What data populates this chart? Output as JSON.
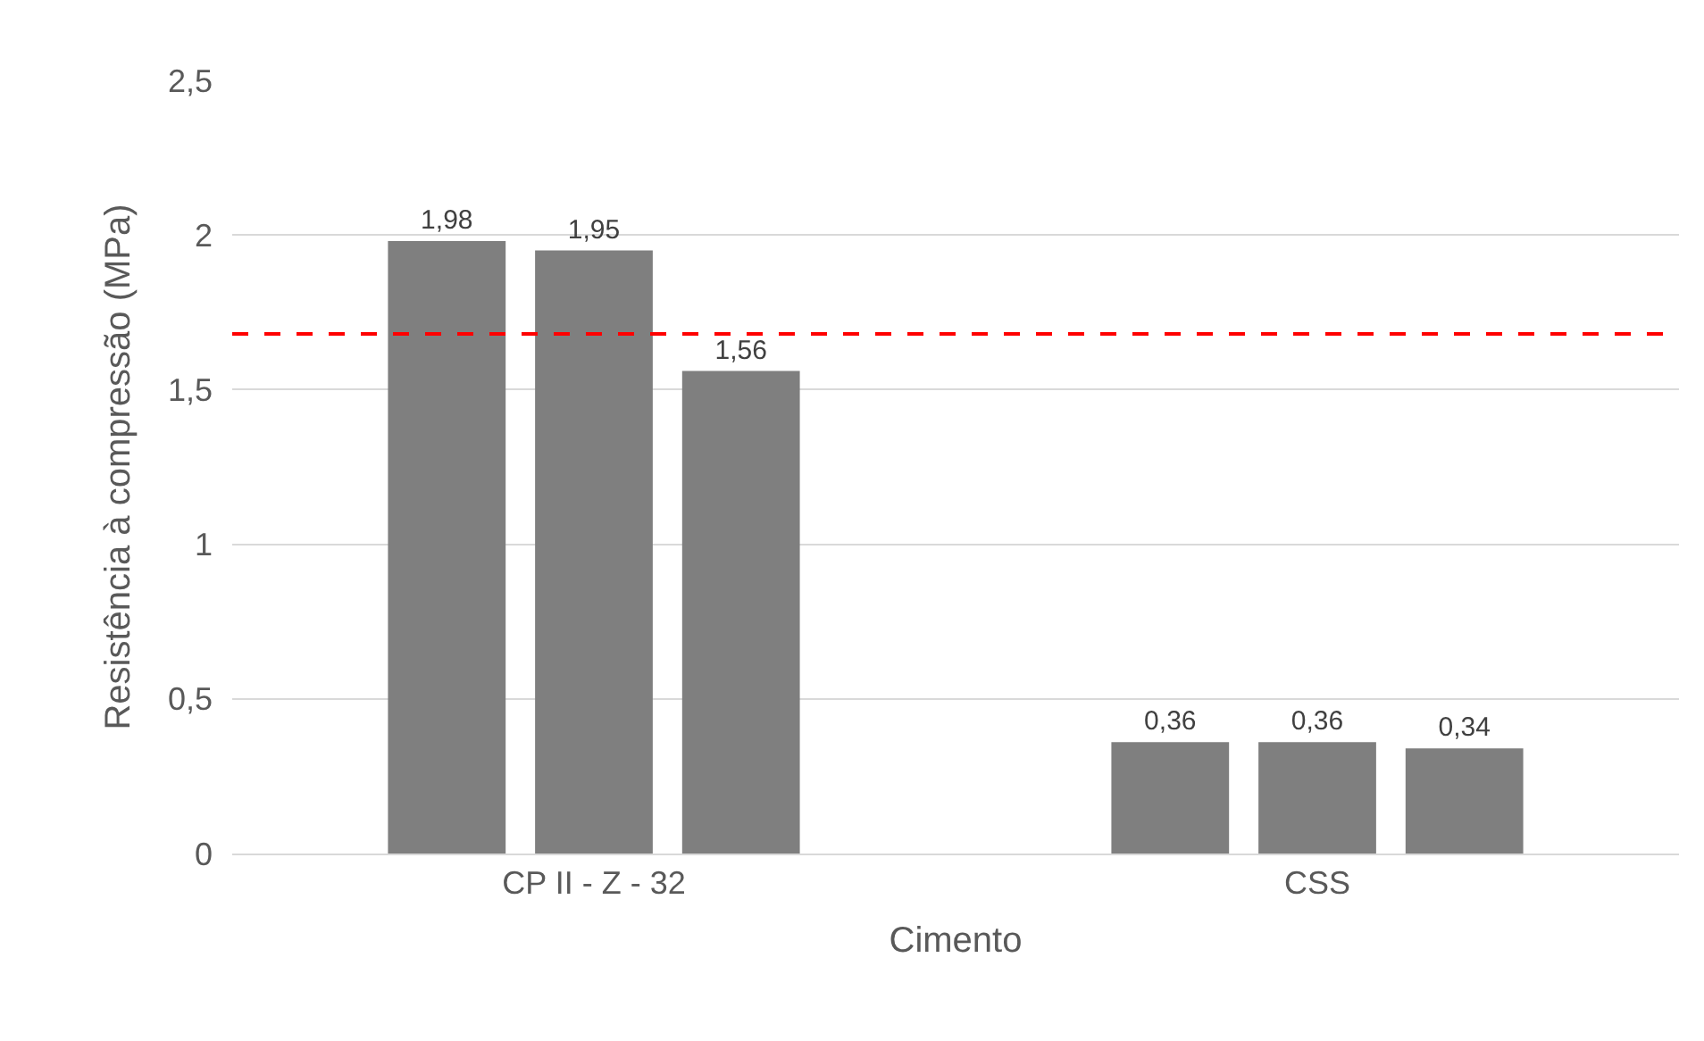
{
  "chart_data": {
    "type": "bar",
    "xlabel": "Cimento",
    "ylabel": "Resistência à compressão (MPa)",
    "categories": [
      "CP II - Z - 32",
      "CSS"
    ],
    "series": [
      {
        "color": "#7f7f7f",
        "values": [
          1.98,
          0.36
        ],
        "value_labels": [
          "1,98",
          "0,36"
        ]
      },
      {
        "color": "#7f7f7f",
        "values": [
          1.95,
          0.36
        ],
        "value_labels": [
          "1,95",
          "0,36"
        ]
      },
      {
        "color": "#7f7f7f",
        "values": [
          1.56,
          0.34
        ],
        "value_labels": [
          "1,56",
          "0,34"
        ]
      }
    ],
    "ylim": [
      0,
      2.5
    ],
    "yticks": [
      0,
      {
        "value": 0.5,
        "label": "0,5"
      },
      1,
      {
        "value": 1.5,
        "label": "1,5"
      },
      2,
      {
        "value": 2.5,
        "label": "2,5"
      }
    ],
    "ref_lines": [
      {
        "axis": "y",
        "value": 1.68,
        "color": "#ff0000",
        "line_style": "dashed"
      }
    ],
    "grid": "y"
  }
}
